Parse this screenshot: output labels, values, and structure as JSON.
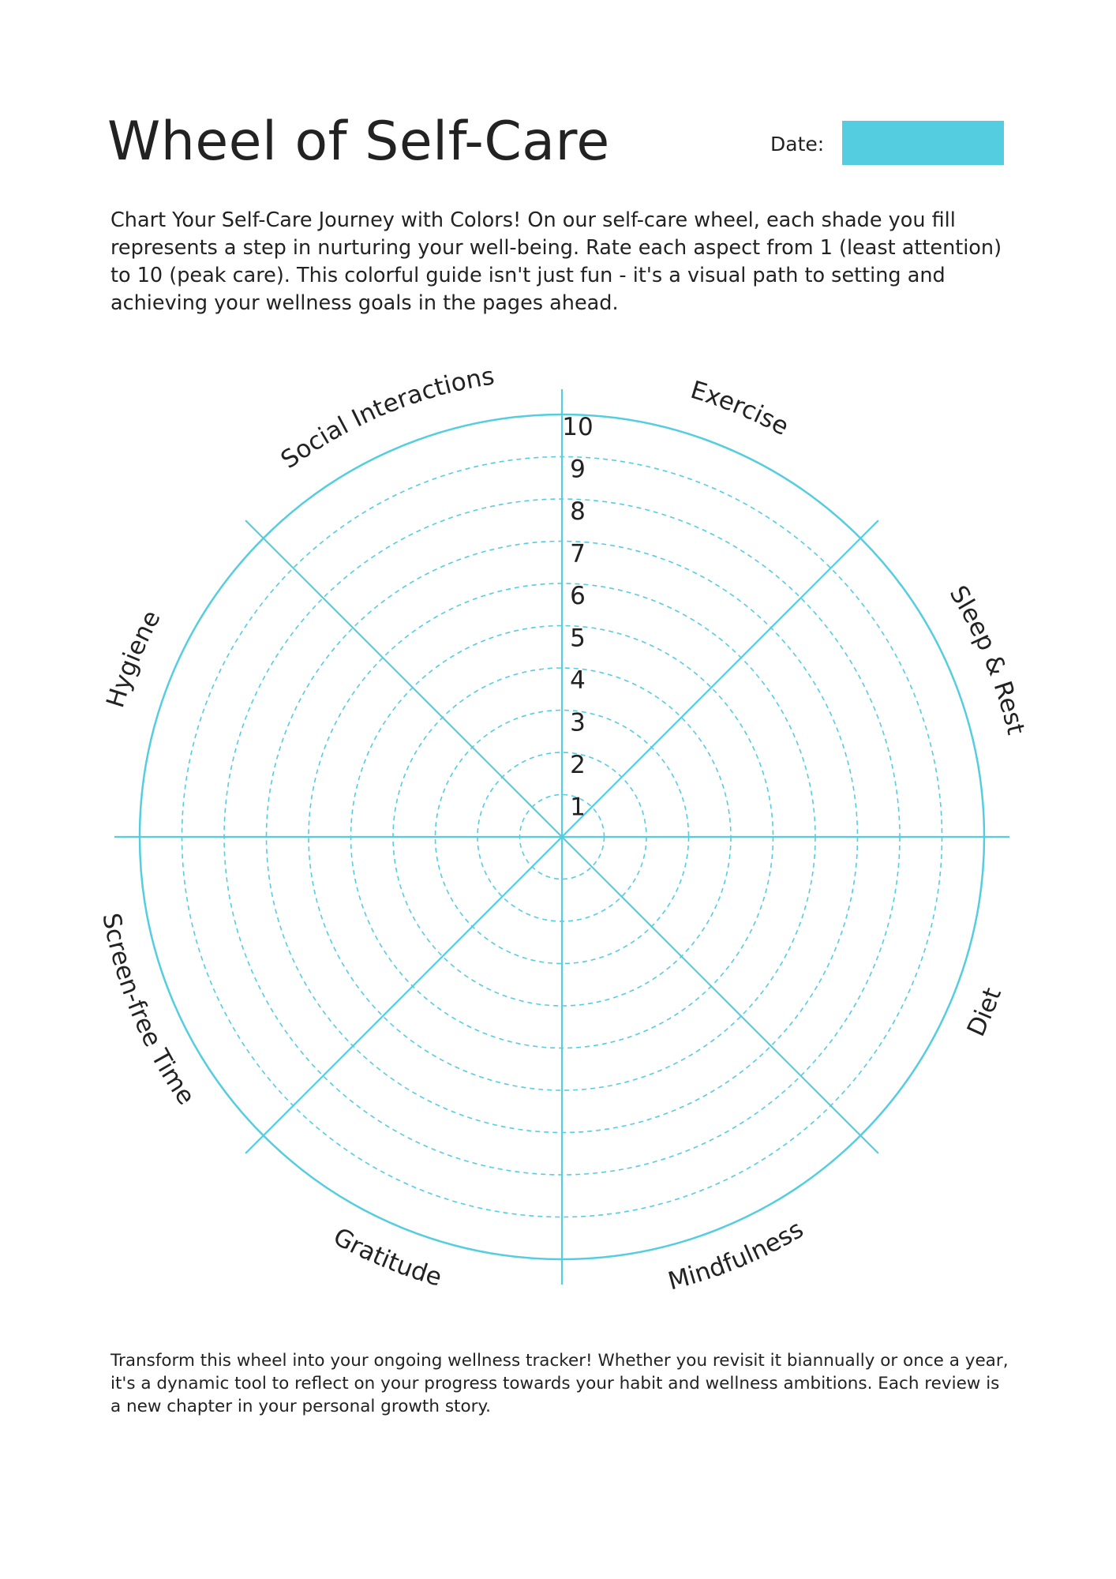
{
  "header": {
    "title": "Wheel of Self-Care",
    "date_label": "Date:"
  },
  "intro": "Chart Your Self-Care Journey with Colors! On our self-care wheel, each shade you fill represents a step in nurturing your well-being. Rate each aspect from 1 (least attention) to 10 (peak care). This colorful guide isn't just fun - it's a visual path to setting and achieving your wellness goals in the pages ahead.",
  "wheel": {
    "scale_min": 1,
    "scale_max": 10,
    "ring_labels": [
      "1",
      "2",
      "3",
      "4",
      "5",
      "6",
      "7",
      "8",
      "9",
      "10"
    ],
    "categories": [
      "Exercise",
      "Sleep & Rest",
      "Diet",
      "Mindfulness",
      "Gratitude",
      "Screen-free Time",
      "Hygiene",
      "Social Interactions"
    ],
    "line_color": "#55CDE0",
    "date_field_color": "#55CDE0"
  },
  "outro": "Transform this wheel into your ongoing wellness tracker! Whether you revisit it biannually or once a year, it's a dynamic tool to reflect on your progress towards your habit and wellness ambitions. Each review is a new chapter in your personal growth story."
}
